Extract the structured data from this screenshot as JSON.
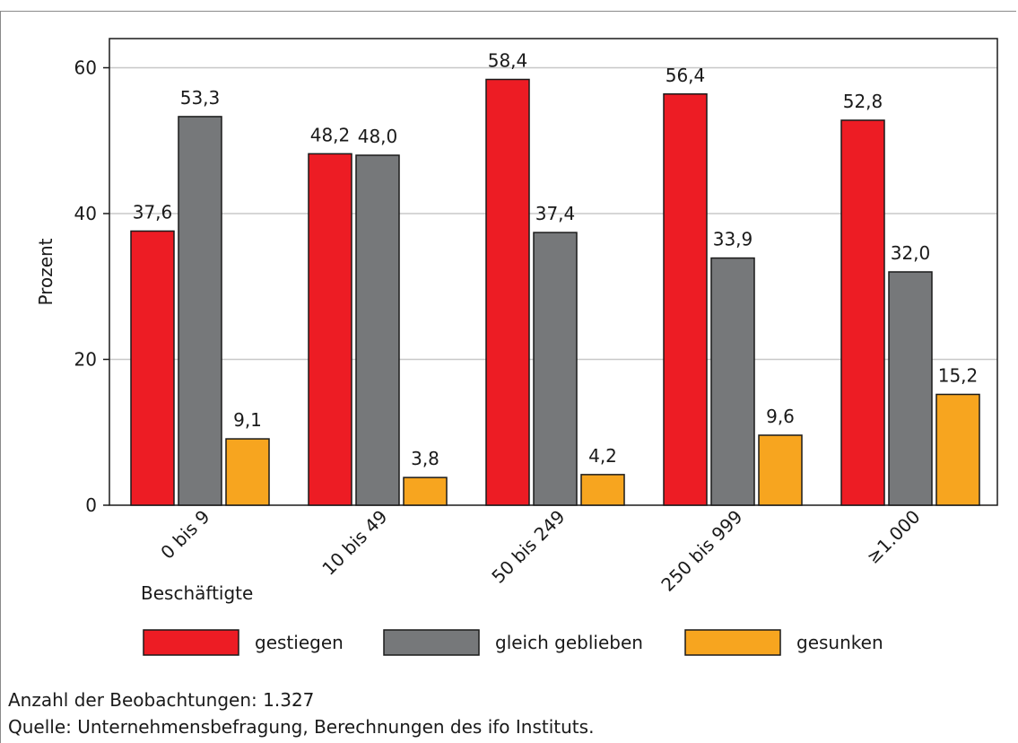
{
  "chart_data": {
    "type": "bar",
    "categories": [
      "0 bis 9",
      "10 bis 49",
      "50 bis 249",
      "250 bis 999",
      "≥1.000"
    ],
    "series": [
      {
        "name": "gestiegen",
        "values": [
          37.6,
          48.2,
          58.4,
          56.4,
          52.8
        ],
        "labels": [
          "37,6",
          "48,2",
          "58,4",
          "56,4",
          "52,8"
        ],
        "color": "#ed1c24"
      },
      {
        "name": "gleich geblieben",
        "values": [
          53.3,
          48.0,
          37.4,
          33.9,
          32.0
        ],
        "labels": [
          "53,3",
          "48,0",
          "37,4",
          "33,9",
          "32,0"
        ],
        "color": "#76787a"
      },
      {
        "name": "gesunken",
        "values": [
          9.1,
          3.8,
          4.2,
          9.6,
          15.2
        ],
        "labels": [
          "9,1",
          "3,8",
          "4,2",
          "9,6",
          "15,2"
        ],
        "color": "#f7a51f"
      }
    ],
    "xlabel": "Beschäftigte",
    "ylabel": "Prozent",
    "ylim": [
      0,
      64
    ],
    "yticks": [
      0,
      20,
      40,
      60
    ],
    "ytick_labels": [
      "0",
      "20",
      "40",
      "60"
    ],
    "grid": true,
    "legend": "bottom"
  },
  "notes": {
    "observations": "Anzahl der Beobachtungen: 1.327",
    "source": "Quelle: Unternehmensbefragung, Berechnungen des ifo Instituts."
  }
}
